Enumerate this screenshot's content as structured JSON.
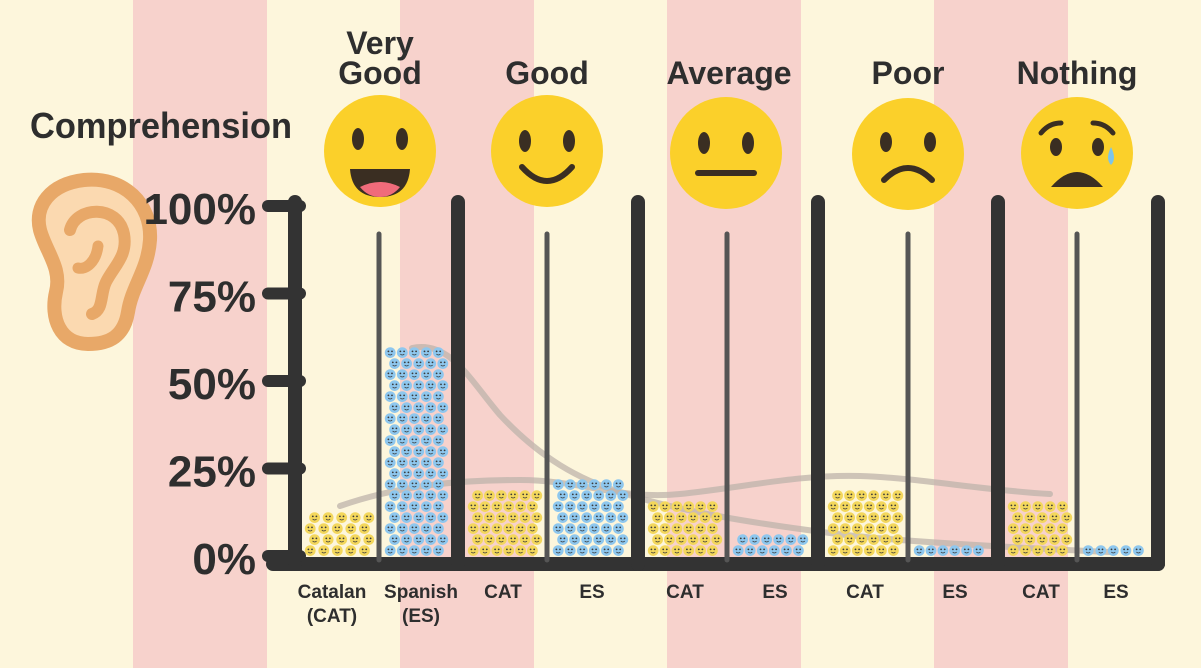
{
  "title": "Comprehension",
  "icons": {
    "ear": "ear-icon"
  },
  "colors": {
    "stripe_light": "#fdf6dc",
    "stripe_pink": "#f7d2cc",
    "dark": "#333333",
    "catalan_dot": "#f3d75c",
    "spanish_dot": "#8ec7ee",
    "emoji_yellow": "#fbd02a",
    "trend": "#bdb3ab"
  },
  "chart_data": {
    "type": "bar",
    "title": "Comprehension",
    "ylim": [
      0,
      100
    ],
    "yticks": [
      "0%",
      "25%",
      "50%",
      "75%",
      "100%"
    ],
    "groups": [
      {
        "label_lines": [
          "Very",
          "Good"
        ],
        "emoji": "grinning-face-icon"
      },
      {
        "label_lines": [
          "Good"
        ],
        "emoji": "smiling-face-icon"
      },
      {
        "label_lines": [
          "Average"
        ],
        "emoji": "neutral-face-icon"
      },
      {
        "label_lines": [
          "Poor"
        ],
        "emoji": "frowning-face-icon"
      },
      {
        "label_lines": [
          "Nothing"
        ],
        "emoji": "anxious-face-icon"
      }
    ],
    "bar_labels": [
      [
        "Catalan",
        "(CAT)"
      ],
      [
        "Spanish",
        "(ES)"
      ],
      [
        "CAT"
      ],
      [
        "ES"
      ],
      [
        "CAT"
      ],
      [
        "ES"
      ],
      [
        "CAT"
      ],
      [
        "ES"
      ],
      [
        "CAT"
      ],
      [
        "ES"
      ]
    ],
    "series": [
      {
        "name": "Catalan (CAT)",
        "values": [
          14,
          20,
          17,
          20,
          17
        ]
      },
      {
        "name": "Spanish (ES)",
        "values": [
          59,
          24,
          8,
          3,
          3
        ]
      }
    ]
  }
}
